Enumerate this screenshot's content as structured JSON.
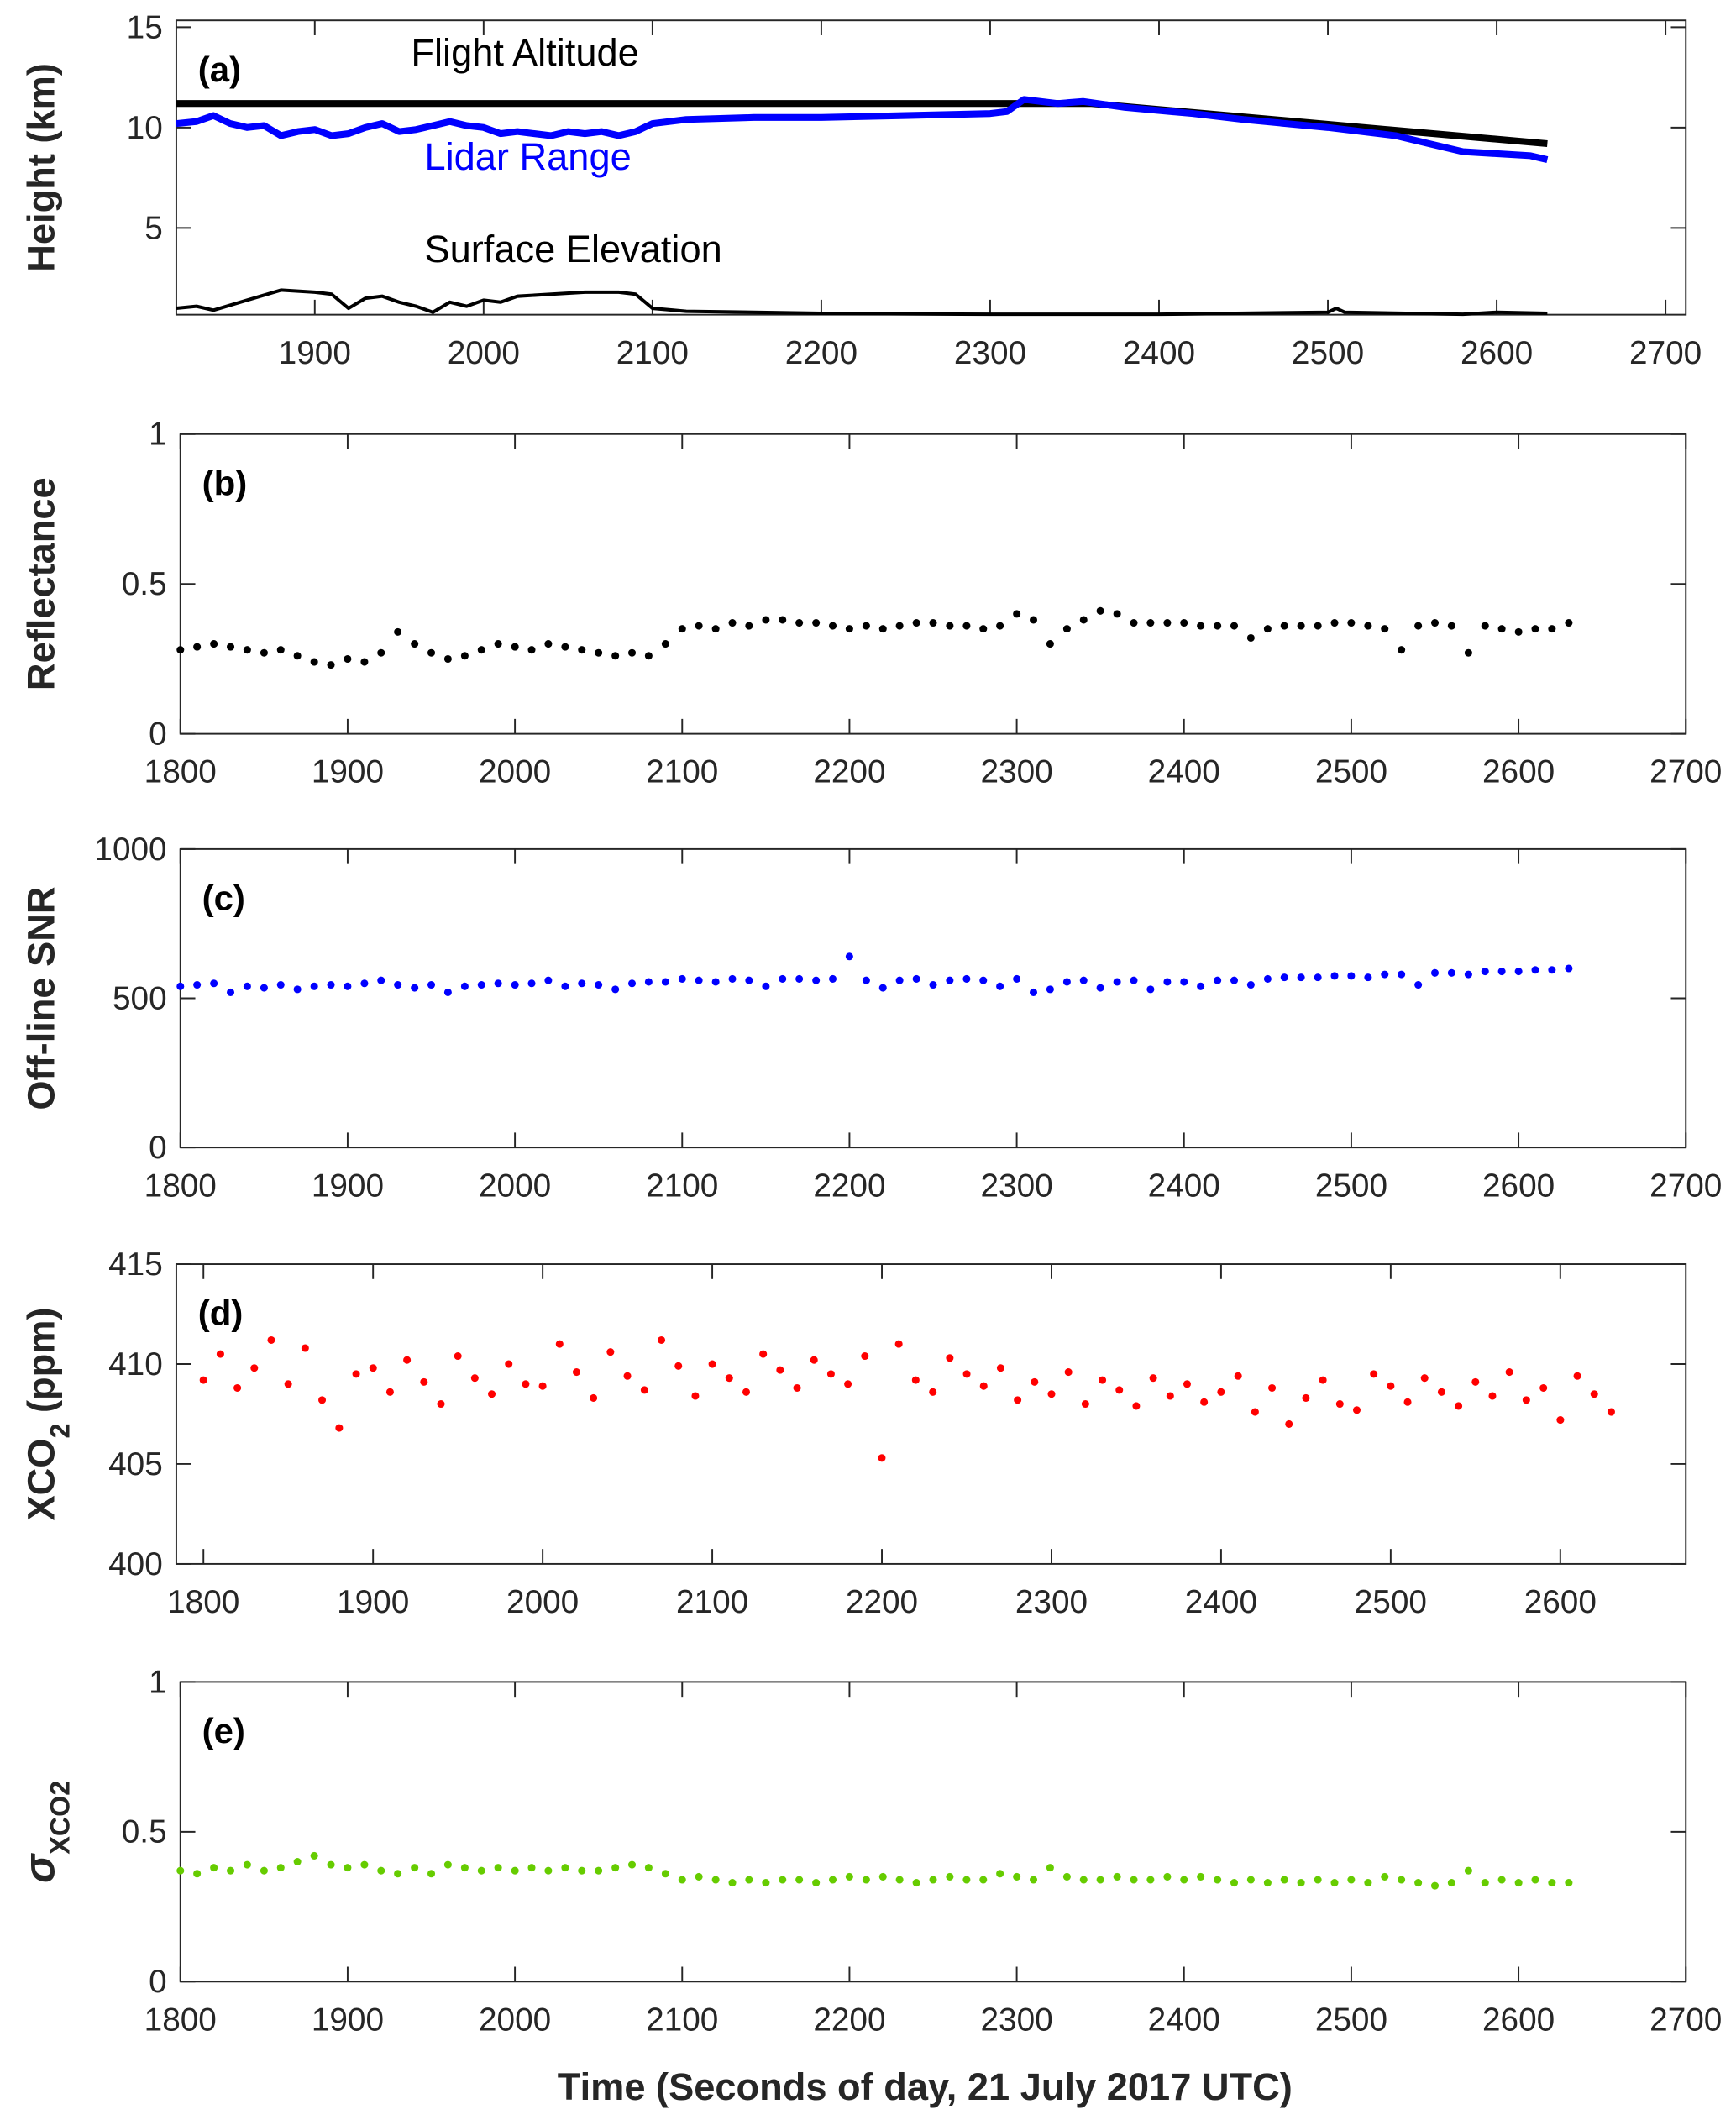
{
  "figure": {
    "xlabel": "Time (Seconds of day, 21 July 2017 UTC)"
  },
  "chart_data": [
    {
      "id": "a",
      "type": "line",
      "panel_label": "(a)",
      "ylabel": "Height (km)",
      "ylabel_sub": "",
      "ylabel_prefix": "",
      "xlim": [
        1818,
        2712
      ],
      "ylim": [
        0.68,
        15.34
      ],
      "xticks": [
        1900,
        2000,
        2100,
        2200,
        2300,
        2400,
        2500,
        2600,
        2700
      ],
      "yticks": [
        5,
        10,
        15
      ],
      "series": [
        {
          "name": "Flight Altitude",
          "color": "#000000",
          "width": 5,
          "points": [
            [
              1818,
              11.2
            ],
            [
              2360,
              11.2
            ],
            [
              2630,
              9.2
            ]
          ]
        },
        {
          "name": "Lidar Range",
          "color": "#0000ff",
          "width": 5,
          "points": [
            [
              1818,
              10.2
            ],
            [
              1830,
              10.3
            ],
            [
              1840,
              10.6
            ],
            [
              1850,
              10.2
            ],
            [
              1860,
              10.0
            ],
            [
              1870,
              10.1
            ],
            [
              1880,
              9.6
            ],
            [
              1890,
              9.8
            ],
            [
              1900,
              9.9
            ],
            [
              1910,
              9.6
            ],
            [
              1920,
              9.7
            ],
            [
              1930,
              10.0
            ],
            [
              1940,
              10.2
            ],
            [
              1950,
              9.8
            ],
            [
              1960,
              9.9
            ],
            [
              1970,
              10.1
            ],
            [
              1980,
              10.3
            ],
            [
              1990,
              10.1
            ],
            [
              2000,
              10.0
            ],
            [
              2010,
              9.7
            ],
            [
              2020,
              9.8
            ],
            [
              2030,
              9.7
            ],
            [
              2040,
              9.6
            ],
            [
              2050,
              9.8
            ],
            [
              2060,
              9.7
            ],
            [
              2070,
              9.8
            ],
            [
              2080,
              9.6
            ],
            [
              2090,
              9.8
            ],
            [
              2100,
              10.2
            ],
            [
              2120,
              10.4
            ],
            [
              2160,
              10.5
            ],
            [
              2200,
              10.5
            ],
            [
              2250,
              10.6
            ],
            [
              2300,
              10.7
            ],
            [
              2310,
              10.8
            ],
            [
              2320,
              11.4
            ],
            [
              2340,
              11.2
            ],
            [
              2355,
              11.3
            ],
            [
              2380,
              11.0
            ],
            [
              2420,
              10.7
            ],
            [
              2450,
              10.4
            ],
            [
              2500,
              10.0
            ],
            [
              2540,
              9.6
            ],
            [
              2560,
              9.2
            ],
            [
              2580,
              8.8
            ],
            [
              2600,
              8.7
            ],
            [
              2620,
              8.6
            ],
            [
              2630,
              8.4
            ]
          ]
        },
        {
          "name": "Surface Elevation",
          "color": "#000000",
          "width": 2.5,
          "points": [
            [
              1818,
              1.0
            ],
            [
              1830,
              1.1
            ],
            [
              1840,
              0.9
            ],
            [
              1860,
              1.4
            ],
            [
              1880,
              1.9
            ],
            [
              1900,
              1.8
            ],
            [
              1910,
              1.7
            ],
            [
              1920,
              1.0
            ],
            [
              1930,
              1.5
            ],
            [
              1940,
              1.6
            ],
            [
              1950,
              1.3
            ],
            [
              1960,
              1.1
            ],
            [
              1970,
              0.8
            ],
            [
              1980,
              1.3
            ],
            [
              1990,
              1.1
            ],
            [
              2000,
              1.4
            ],
            [
              2010,
              1.3
            ],
            [
              2020,
              1.6
            ],
            [
              2040,
              1.7
            ],
            [
              2060,
              1.8
            ],
            [
              2080,
              1.8
            ],
            [
              2090,
              1.7
            ],
            [
              2100,
              1.0
            ],
            [
              2120,
              0.85
            ],
            [
              2200,
              0.75
            ],
            [
              2300,
              0.7
            ],
            [
              2400,
              0.7
            ],
            [
              2500,
              0.8
            ],
            [
              2505,
              1.0
            ],
            [
              2510,
              0.8
            ],
            [
              2580,
              0.7
            ],
            [
              2600,
              0.8
            ],
            [
              2630,
              0.75
            ]
          ]
        }
      ],
      "annotations": [
        {
          "text": "Flight Altitude",
          "color": "#000000",
          "at": [
            1957,
            13.1
          ]
        },
        {
          "text": "Lidar Range",
          "color": "#0000ff",
          "at": [
            1965,
            7.9
          ]
        },
        {
          "text": "Surface Elevation",
          "color": "#000000",
          "at": [
            1965,
            3.3
          ]
        }
      ]
    },
    {
      "id": "b",
      "type": "scatter",
      "panel_label": "(b)",
      "ylabel": "Reflectance",
      "ylabel_sub": "",
      "ylabel_prefix": "",
      "xlim": [
        1800,
        2700
      ],
      "ylim": [
        0,
        1
      ],
      "xticks": [
        1800,
        1900,
        2000,
        2100,
        2200,
        2300,
        2400,
        2500,
        2600,
        2700
      ],
      "yticks": [
        0,
        0.5,
        1
      ],
      "color": "#000000",
      "x_start": 1800,
      "x_step": 10,
      "values": [
        0.28,
        0.29,
        0.3,
        0.29,
        0.28,
        0.27,
        0.28,
        0.26,
        0.24,
        0.23,
        0.25,
        0.24,
        0.27,
        0.34,
        0.3,
        0.27,
        0.25,
        0.26,
        0.28,
        0.3,
        0.29,
        0.28,
        0.3,
        0.29,
        0.28,
        0.27,
        0.26,
        0.27,
        0.26,
        0.3,
        0.35,
        0.36,
        0.35,
        0.37,
        0.36,
        0.38,
        0.38,
        0.37,
        0.37,
        0.36,
        0.35,
        0.36,
        0.35,
        0.36,
        0.37,
        0.37,
        0.36,
        0.36,
        0.35,
        0.36,
        0.4,
        0.38,
        0.3,
        0.35,
        0.38,
        0.41,
        0.4,
        0.37,
        0.37,
        0.37,
        0.37,
        0.36,
        0.36,
        0.36,
        0.32,
        0.35,
        0.36,
        0.36,
        0.36,
        0.37,
        0.37,
        0.36,
        0.35,
        0.28,
        0.36,
        0.37,
        0.36,
        0.27,
        0.36,
        0.35,
        0.34,
        0.35,
        0.35,
        0.37
      ]
    },
    {
      "id": "c",
      "type": "scatter",
      "panel_label": "(c)",
      "ylabel": "Off-line SNR",
      "ylabel_sub": "",
      "ylabel_prefix": "",
      "xlim": [
        1800,
        2700
      ],
      "ylim": [
        0,
        1000
      ],
      "xticks": [
        1800,
        1900,
        2000,
        2100,
        2200,
        2300,
        2400,
        2500,
        2600,
        2700
      ],
      "yticks": [
        0,
        500,
        1000
      ],
      "color": "#0000ff",
      "x_start": 1800,
      "x_step": 10,
      "values": [
        540,
        545,
        550,
        520,
        540,
        535,
        545,
        530,
        540,
        545,
        540,
        550,
        560,
        545,
        535,
        545,
        520,
        540,
        545,
        550,
        545,
        550,
        560,
        540,
        550,
        545,
        530,
        550,
        555,
        555,
        565,
        560,
        555,
        565,
        560,
        540,
        565,
        565,
        560,
        565,
        640,
        560,
        535,
        560,
        565,
        545,
        560,
        565,
        560,
        540,
        565,
        520,
        530,
        555,
        560,
        535,
        555,
        560,
        530,
        555,
        555,
        540,
        560,
        560,
        545,
        565,
        570,
        570,
        570,
        575,
        575,
        570,
        580,
        580,
        545,
        585,
        585,
        580,
        590,
        590,
        590,
        595,
        595,
        600
      ]
    },
    {
      "id": "d",
      "type": "scatter",
      "panel_label": "(d)",
      "ylabel": "XCO",
      "ylabel_sub": "2",
      "ylabel_suffix": " (ppm)",
      "ylabel_prefix": "",
      "xlim": [
        1784,
        2674
      ],
      "ylim": [
        400,
        415
      ],
      "xticks": [
        1800,
        1900,
        2000,
        2100,
        2200,
        2300,
        2400,
        2500,
        2600
      ],
      "yticks": [
        400,
        405,
        410,
        415
      ],
      "color": "#ff0000",
      "x_start": 1800,
      "x_step": 10,
      "values": [
        409.2,
        410.5,
        408.8,
        409.8,
        411.2,
        409.0,
        410.8,
        408.2,
        406.8,
        409.5,
        409.8,
        408.6,
        410.2,
        409.1,
        408.0,
        410.4,
        409.3,
        408.5,
        410.0,
        409.0,
        408.9,
        411.0,
        409.6,
        408.3,
        410.6,
        409.4,
        408.7,
        411.2,
        409.9,
        408.4,
        410.0,
        409.3,
        408.6,
        410.5,
        409.7,
        408.8,
        410.2,
        409.5,
        409.0,
        410.4,
        405.3,
        411.0,
        409.2,
        408.6,
        410.3,
        409.5,
        408.9,
        409.8,
        408.2,
        409.1,
        408.5,
        409.6,
        408.0,
        409.2,
        408.7,
        407.9,
        409.3,
        408.4,
        409.0,
        408.1,
        408.6,
        409.4,
        407.6,
        408.8,
        407.0,
        408.3,
        409.2,
        408.0,
        407.7,
        409.5,
        408.9,
        408.1,
        409.3,
        408.6,
        407.9,
        409.1,
        408.4,
        409.6,
        408.2,
        408.8,
        407.2,
        409.4,
        408.5,
        407.6
      ]
    },
    {
      "id": "e",
      "type": "scatter",
      "panel_label": "(e)",
      "ylabel": "",
      "ylabel_prefix": "σ",
      "ylabel_sub": "XCO2",
      "xlim": [
        1800,
        2700
      ],
      "ylim": [
        0,
        1
      ],
      "xticks": [
        1800,
        1900,
        2000,
        2100,
        2200,
        2300,
        2400,
        2500,
        2600,
        2700
      ],
      "yticks": [
        0,
        0.5,
        1
      ],
      "color": "#66cc00",
      "x_start": 1800,
      "x_step": 10,
      "values": [
        0.37,
        0.36,
        0.38,
        0.37,
        0.39,
        0.37,
        0.38,
        0.4,
        0.42,
        0.39,
        0.38,
        0.39,
        0.37,
        0.36,
        0.38,
        0.36,
        0.39,
        0.38,
        0.37,
        0.38,
        0.37,
        0.38,
        0.37,
        0.38,
        0.37,
        0.37,
        0.38,
        0.39,
        0.38,
        0.36,
        0.34,
        0.35,
        0.34,
        0.33,
        0.34,
        0.33,
        0.34,
        0.34,
        0.33,
        0.34,
        0.35,
        0.34,
        0.35,
        0.34,
        0.33,
        0.34,
        0.35,
        0.34,
        0.34,
        0.36,
        0.35,
        0.34,
        0.38,
        0.35,
        0.34,
        0.34,
        0.35,
        0.34,
        0.34,
        0.35,
        0.34,
        0.35,
        0.34,
        0.33,
        0.34,
        0.33,
        0.34,
        0.33,
        0.34,
        0.33,
        0.34,
        0.33,
        0.35,
        0.34,
        0.33,
        0.32,
        0.33,
        0.37,
        0.33,
        0.34,
        0.33,
        0.34,
        0.33,
        0.33
      ]
    }
  ]
}
